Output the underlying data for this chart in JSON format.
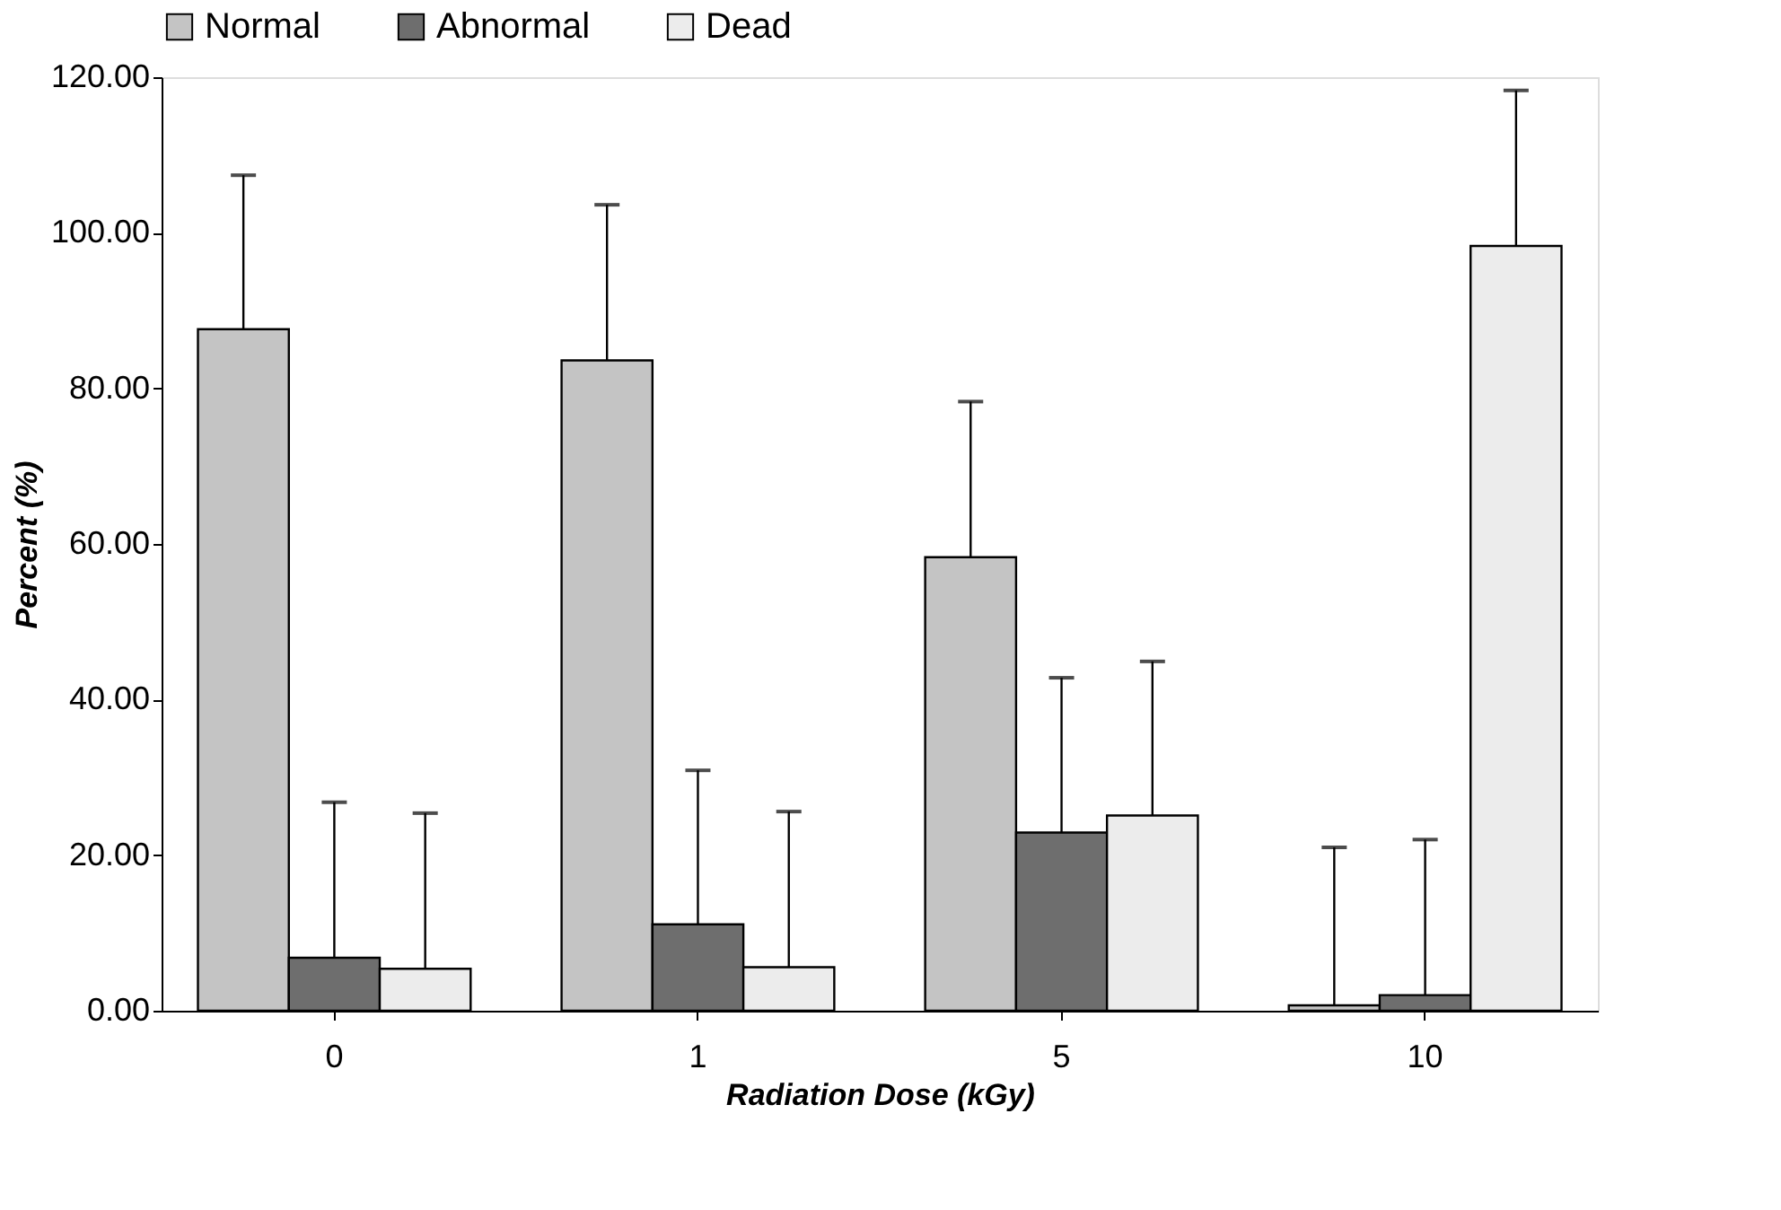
{
  "chart_data": {
    "type": "bar",
    "xlabel": "Radiation Dose (kGy)",
    "ylabel": "Percent (%)",
    "categories": [
      "0",
      "1",
      "5",
      "10"
    ],
    "series": [
      {
        "name": "Normal",
        "color": "#c4c4c4",
        "values": [
          87.6,
          83.6,
          58.3,
          0.7
        ],
        "errors": [
          [
            87.6,
            107.4
          ],
          [
            83.6,
            103.6
          ],
          [
            58.3,
            78.3
          ],
          [
            0.7,
            21.0
          ]
        ]
      },
      {
        "name": "Abnormal",
        "color": "#6e6e6e",
        "values": [
          6.8,
          11.1,
          22.9,
          2.0
        ],
        "errors": [
          [
            6.8,
            26.8
          ],
          [
            11.1,
            30.9
          ],
          [
            22.9,
            42.8
          ],
          [
            2.0,
            22.0
          ]
        ]
      },
      {
        "name": "Dead",
        "color": "#ececec",
        "values": [
          5.4,
          5.6,
          25.1,
          98.3
        ],
        "errors": [
          [
            5.4,
            25.4
          ],
          [
            5.6,
            25.6
          ],
          [
            25.1,
            44.9
          ],
          [
            98.3,
            118.3
          ]
        ]
      }
    ],
    "ylim": [
      0,
      120
    ],
    "yticks": [
      {
        "value": 0,
        "label": "0.00"
      },
      {
        "value": 20,
        "label": "20.00"
      },
      {
        "value": 40,
        "label": "40.00"
      },
      {
        "value": 60,
        "label": "60.00"
      },
      {
        "value": 80,
        "label": "80.00"
      },
      {
        "value": 100,
        "label": "100.00"
      },
      {
        "value": 120,
        "label": "120.00"
      }
    ],
    "grid": false,
    "legend": "top"
  }
}
